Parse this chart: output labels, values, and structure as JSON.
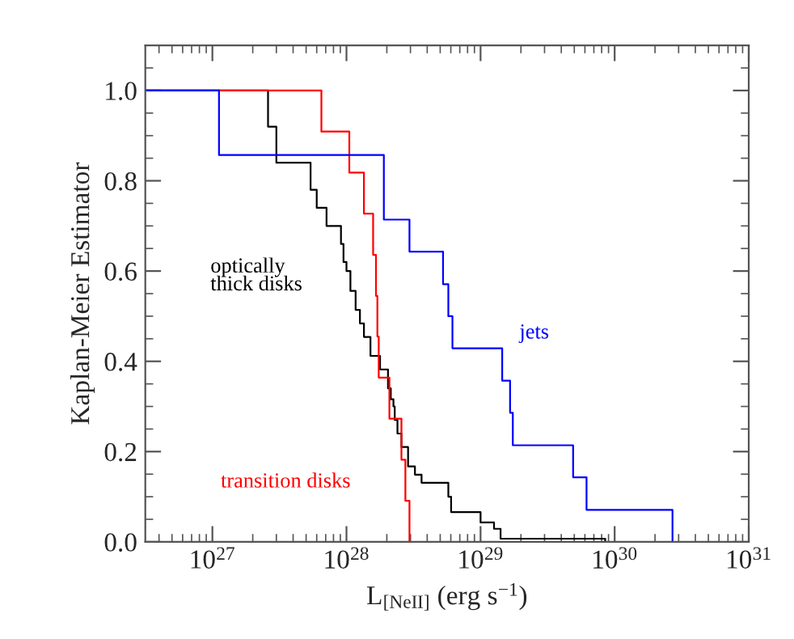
{
  "chart_data": {
    "type": "step",
    "xlabel": "L$_{[NeII]}$ (erg s$^{−1}$)",
    "ylabel": "Kaplan-Meier Estimator",
    "log": "x",
    "xlim": [
      3.16e+26,
      1e+31
    ],
    "xticks": [
      {
        "value": 1e+27,
        "label": "10$^{27}$"
      },
      {
        "value": 1e+28,
        "label": "10$^{28}$"
      },
      {
        "value": 1e+29,
        "label": "10$^{29}$"
      },
      {
        "value": 1e+30,
        "label": "10$^{30}$"
      },
      {
        "value": 1e+31,
        "label": "10$^{31}$"
      }
    ],
    "ylim": [
      0,
      1.1
    ],
    "yticks": [
      {
        "value": 0,
        "label": "0.0"
      },
      {
        "value": 0.2,
        "label": "0.2"
      },
      {
        "value": 0.4,
        "label": "0.4"
      },
      {
        "value": 0.6,
        "label": "0.6"
      },
      {
        "value": 0.8,
        "label": "0.8"
      },
      {
        "value": 1,
        "label": "1.0"
      }
    ],
    "grid": false,
    "legend": false,
    "series": [
      {
        "name": "optically thick disks",
        "color": "#000000",
        "x": [
          3.16e+26,
          2.6e+27,
          3e+27,
          5.4e+27,
          6e+27,
          7.1e+27,
          9.1e+27,
          9.5e+27,
          1e+28,
          1.07e+28,
          1.17e+28,
          1.26e+28,
          1.35e+28,
          1.51e+28,
          1.78e+28,
          2.04e+28,
          2.14e+28,
          2.24e+28,
          2.29e+28,
          2.4e+28,
          2.57e+28,
          2.88e+28,
          3.24e+28,
          3.63e+28,
          5.75e+28,
          6.03e+28,
          1e+29,
          1.26e+29,
          1.41e+29,
          8.5e+29
        ],
        "values": [
          1.0,
          0.92,
          0.84,
          0.78,
          0.74,
          0.7,
          0.66,
          0.62,
          0.6,
          0.556,
          0.514,
          0.484,
          0.454,
          0.412,
          0.382,
          0.34,
          0.316,
          0.3,
          0.27,
          0.24,
          0.21,
          0.167,
          0.149,
          0.131,
          0.1,
          0.066,
          0.043,
          0.029,
          0.007,
          0.0
        ]
      },
      {
        "name": "transition disks",
        "color": "#ff0000",
        "x": [
          3.16e+26,
          6.5e+27,
          1.05e+28,
          1.35e+28,
          1.58e+28,
          1.66e+28,
          1.7e+28,
          1.74e+28,
          2.09e+28,
          2.57e+28,
          2.75e+28,
          2.95e+28
        ],
        "values": [
          1.0,
          0.909,
          0.818,
          0.727,
          0.636,
          0.545,
          0.455,
          0.364,
          0.273,
          0.182,
          0.091,
          0.0
        ]
      },
      {
        "name": "jets",
        "color": "#0000ff",
        "x": [
          3.16e+26,
          1.12e+27,
          1.9e+28,
          2.95e+28,
          5.25e+28,
          5.75e+28,
          6.17e+28,
          1.45e+29,
          1.66e+29,
          1.74e+29,
          4.9e+29,
          6.17e+29,
          2.7e+30
        ],
        "values": [
          1.0,
          0.857,
          0.714,
          0.643,
          0.571,
          0.5,
          0.429,
          0.357,
          0.286,
          0.214,
          0.143,
          0.071,
          0.0
        ]
      }
    ]
  }
}
